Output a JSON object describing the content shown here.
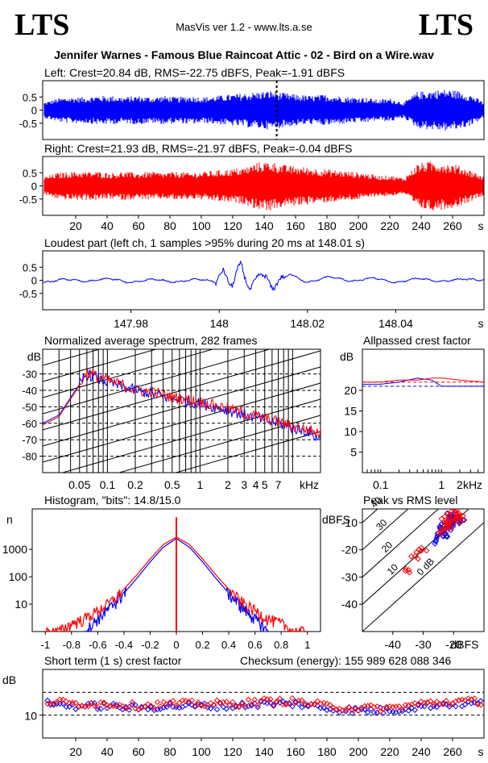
{
  "header": {
    "logo_left": "LTS",
    "logo_right": "LTS",
    "app_title": "MasVis ver 1.2 - www.lts.a.se",
    "file_title": "Jennifer Warnes - Famous Blue Raincoat Attic - 02 - Bird on a Wire.wav"
  },
  "colors": {
    "left": "#0000ff",
    "right": "#ff0000",
    "grid": "#000000"
  },
  "chart_data": [
    {
      "id": "left_waveform",
      "type": "area",
      "title": "Left: Crest=20.84 dB, RMS=-22.75 dBFS, Peak=-1.91 dBFS",
      "ylim": [
        -1,
        1
      ],
      "yticks": [
        "0.5",
        "0",
        "-0.5"
      ],
      "xlim": [
        0,
        280
      ],
      "loudest_marker_s": 148.01,
      "series": [
        {
          "values": [
            0.3,
            0.45,
            0.5,
            0.5,
            0.55,
            0.55,
            0.5,
            0.55,
            0.5,
            0.55,
            0.5,
            0.55,
            0.5,
            0.55,
            0.6,
            0.65,
            0.7,
            0.75,
            0.65,
            0.6,
            0.55,
            0.6,
            0.55,
            0.5,
            0.5,
            0.4,
            0.45,
            0.3,
            0.7,
            0.75,
            0.8,
            0.75,
            0.6,
            0.3
          ]
        }
      ]
    },
    {
      "id": "right_waveform",
      "type": "area",
      "title": "Right: Crest=21.93 dB, RMS=-21.97 dBFS, Peak=-0.04 dBFS",
      "ylim": [
        -1,
        1
      ],
      "yticks": [
        "0.5",
        "0",
        "-0.5"
      ],
      "xlim": [
        0,
        280
      ],
      "xlabel": "s",
      "xticks": [
        "20",
        "40",
        "60",
        "80",
        "100",
        "120",
        "140",
        "160",
        "180",
        "200",
        "220",
        "240",
        "260"
      ],
      "series": [
        {
          "values": [
            0.35,
            0.5,
            0.55,
            0.55,
            0.55,
            0.5,
            0.55,
            0.5,
            0.55,
            0.5,
            0.55,
            0.5,
            0.55,
            0.6,
            0.65,
            0.7,
            0.9,
            0.95,
            0.8,
            0.75,
            0.7,
            0.65,
            0.6,
            0.55,
            0.5,
            0.4,
            0.4,
            0.3,
            0.85,
            0.95,
            0.9,
            0.8,
            0.6,
            0.35
          ]
        }
      ]
    },
    {
      "id": "loudest_part",
      "type": "line",
      "title": "Loudest part (left  ch, 1 samples >95% during 20 ms at 148.01 s)",
      "ylim": [
        -1,
        1
      ],
      "yticks": [
        "0.5",
        "0",
        "-0.5"
      ],
      "xlim": [
        147.96,
        148.06
      ],
      "xlabel": "s",
      "xticks": [
        "147.98",
        "148",
        "148.02",
        "148.04"
      ],
      "series": [
        {
          "x": [
            147.96,
            147.965,
            147.97,
            147.975,
            147.98,
            147.985,
            147.99,
            147.995,
            147.999,
            148.001,
            148.003,
            148.005,
            148.007,
            148.009,
            148.012,
            148.016,
            148.02,
            148.025,
            148.03,
            148.035,
            148.04,
            148.045,
            148.05,
            148.055,
            148.06
          ],
          "y": [
            -0.1,
            0.05,
            -0.05,
            0.08,
            -0.1,
            0.05,
            -0.08,
            0.05,
            -0.05,
            0.3,
            -0.2,
            0.7,
            -0.5,
            0.35,
            -0.25,
            0.25,
            -0.1,
            0.15,
            -0.05,
            0.1,
            -0.1,
            0.08,
            -0.05,
            0.05,
            0.0
          ]
        }
      ]
    },
    {
      "id": "spectrum",
      "type": "line",
      "title": "Normalized average spectrum, 282 frames",
      "ylabel": "dB",
      "xlabel": "kHz",
      "log_x": true,
      "xlim": [
        0.02,
        20
      ],
      "ylim": [
        -90,
        -15
      ],
      "yticks": [
        "-30",
        "-40",
        "-50",
        "-60",
        "-70",
        "-80"
      ],
      "xticks": [
        "0.05",
        "0.1",
        "0.2",
        "0.5",
        "1",
        "2",
        "3",
        "4",
        "5",
        "7"
      ],
      "series": [
        {
          "name": "left",
          "x": [
            0.02,
            0.03,
            0.045,
            0.06,
            0.08,
            0.1,
            0.15,
            0.2,
            0.3,
            0.5,
            1,
            2,
            3,
            5,
            7,
            10,
            15,
            20
          ],
          "y": [
            -60,
            -55,
            -40,
            -30,
            -33,
            -35,
            -38,
            -40,
            -42,
            -45,
            -48,
            -52,
            -55,
            -58,
            -60,
            -63,
            -65,
            -70
          ]
        },
        {
          "name": "right",
          "x": [
            0.02,
            0.03,
            0.045,
            0.06,
            0.08,
            0.1,
            0.15,
            0.2,
            0.3,
            0.5,
            1,
            2,
            3,
            5,
            7,
            10,
            15,
            20
          ],
          "y": [
            -61,
            -56,
            -41,
            -29,
            -32,
            -34,
            -37,
            -40,
            -41,
            -44,
            -47,
            -51,
            -54,
            -57,
            -59,
            -62,
            -64,
            -66
          ]
        }
      ]
    },
    {
      "id": "allpassed_crest",
      "type": "line",
      "title": "Allpassed crest factor",
      "ylabel": "dB",
      "xlabel": "kHz",
      "log_x": true,
      "xlim": [
        0.05,
        5
      ],
      "ylim": [
        0,
        30
      ],
      "yticks": [
        "20",
        "15",
        "10",
        "5"
      ],
      "xticks": [
        "0.1",
        "1",
        "2"
      ],
      "series": [
        {
          "name": "left",
          "x": [
            0.05,
            0.1,
            0.2,
            0.4,
            0.7,
            1,
            2,
            5
          ],
          "y": [
            21.5,
            21.5,
            22,
            23,
            22.5,
            21,
            21,
            21
          ]
        },
        {
          "name": "right",
          "x": [
            0.05,
            0.1,
            0.2,
            0.4,
            0.7,
            1,
            2,
            5
          ],
          "y": [
            22,
            22,
            22.5,
            22.5,
            23,
            23,
            22.5,
            22
          ]
        }
      ]
    },
    {
      "id": "histogram",
      "type": "line",
      "title": "Histogram, \"bits\": 14.8/15.0",
      "ylabel": "n",
      "log_y": true,
      "xlim": [
        -1.1,
        1.1
      ],
      "ylim": [
        1,
        30000
      ],
      "yticks": [
        "1000",
        "100",
        "10"
      ],
      "xticks": [
        "-1",
        "-0.8",
        "-0.6",
        "-0.4",
        "-0.2",
        "0",
        "0.2",
        "0.4",
        "0.6",
        "0.8",
        "1"
      ],
      "series": [
        {
          "name": "left",
          "x": [
            -0.7,
            -0.6,
            -0.5,
            -0.4,
            -0.3,
            -0.2,
            -0.1,
            0,
            0.1,
            0.2,
            0.3,
            0.4,
            0.5,
            0.6,
            0.7
          ],
          "y": [
            1,
            3,
            8,
            25,
            90,
            350,
            1200,
            2500,
            1200,
            350,
            90,
            25,
            8,
            3,
            1
          ]
        },
        {
          "name": "right",
          "x": [
            -1,
            -0.9,
            -0.8,
            -0.7,
            -0.6,
            -0.5,
            -0.4,
            -0.3,
            -0.2,
            -0.1,
            0,
            0.1,
            0.2,
            0.3,
            0.4,
            0.5,
            0.6,
            0.7,
            0.8,
            0.9,
            1
          ],
          "y": [
            1,
            1,
            2,
            3,
            6,
            12,
            35,
            120,
            450,
            1500,
            2800,
            1500,
            450,
            120,
            35,
            12,
            6,
            3,
            2,
            1,
            1
          ]
        }
      ],
      "peak_count_at_0": 15000
    },
    {
      "id": "peak_vs_rms",
      "type": "scatter",
      "title": "Peak vs RMS level",
      "ylabel": "dBFS",
      "xlabel": "dBFS",
      "xlim": [
        -50,
        -10
      ],
      "ylim": [
        -50,
        -5
      ],
      "yticks": [
        "-10",
        "-20",
        "-30",
        "-40"
      ],
      "xticks": [
        "-40",
        "-30",
        "-20"
      ],
      "diagonal_labels": [
        "40",
        "30",
        "20",
        "10",
        "0 dB"
      ],
      "series": [
        {
          "name": "left",
          "x": [
            -24,
            -23,
            -22,
            -21,
            -20,
            -22,
            -23,
            -19,
            -25,
            -21,
            -20,
            -18,
            -24,
            -22
          ],
          "y": [
            -12,
            -11,
            -10,
            -9,
            -8,
            -13,
            -14,
            -9,
            -17,
            -11,
            -12,
            -10,
            -15,
            -8
          ]
        },
        {
          "name": "right",
          "x": [
            -23,
            -22,
            -21,
            -20,
            -19,
            -21,
            -22,
            -18,
            -30,
            -33,
            -36,
            -19,
            -24,
            -20
          ],
          "y": [
            -10,
            -9,
            -8,
            -7,
            -6,
            -11,
            -12,
            -8,
            -20,
            -22,
            -27,
            -9,
            -13,
            -6
          ]
        }
      ]
    },
    {
      "id": "short_term_crest",
      "type": "scatter",
      "title": "Short term (1 s) crest factor",
      "checksum": "Checksum (energy):   155 989 628 088 346",
      "ylabel": "dB",
      "xlabel": "s",
      "xlim": [
        0,
        280
      ],
      "ylim": [
        0,
        30
      ],
      "yticks": [
        "10"
      ],
      "xticks": [
        "20",
        "40",
        "60",
        "80",
        "100",
        "120",
        "140",
        "160",
        "180",
        "200",
        "220",
        "240",
        "260"
      ],
      "series": [
        {
          "name": "left",
          "x": [
            5,
            20,
            40,
            60,
            80,
            100,
            120,
            140,
            160,
            180,
            200,
            220,
            240,
            260,
            275
          ],
          "y": [
            15,
            14,
            14,
            13,
            14,
            14,
            14,
            15,
            15,
            13,
            12,
            12,
            14,
            15,
            15
          ]
        },
        {
          "name": "right",
          "x": [
            5,
            20,
            40,
            60,
            80,
            100,
            120,
            140,
            160,
            180,
            200,
            220,
            240,
            260,
            275
          ],
          "y": [
            16,
            15,
            15,
            14,
            15,
            15,
            15,
            16,
            16,
            14,
            13,
            13,
            15,
            16,
            16
          ]
        }
      ]
    }
  ]
}
